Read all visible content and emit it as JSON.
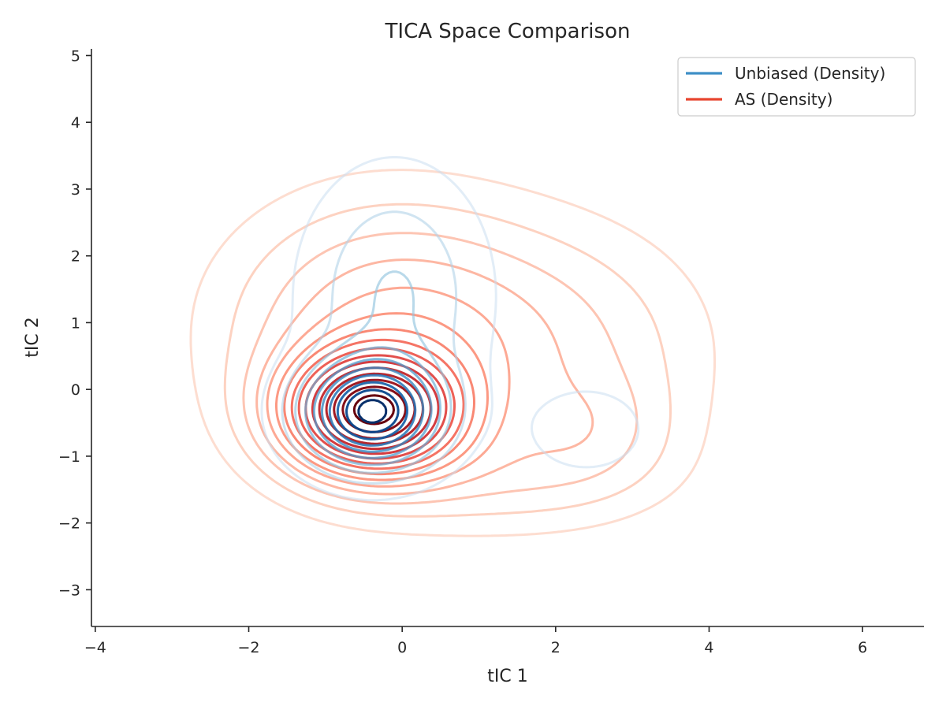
{
  "chart_data": {
    "type": "contour",
    "title": "TICA Space Comparison",
    "xlabel": "tIC 1",
    "ylabel": "tIC 2",
    "xlim": [
      -4.05,
      6.8
    ],
    "ylim": [
      -3.55,
      5.1
    ],
    "x_ticks": [
      -4,
      -2,
      0,
      2,
      4,
      6
    ],
    "y_ticks": [
      -3,
      -2,
      -1,
      0,
      1,
      2,
      3,
      4,
      5
    ],
    "x_tick_labels": [
      "−4",
      "−2",
      "0",
      "2",
      "4",
      "6"
    ],
    "y_tick_labels": [
      "−3",
      "−2",
      "−1",
      "0",
      "1",
      "2",
      "3",
      "4",
      "5"
    ],
    "grid": false,
    "legend_position": "top-right",
    "series": [
      {
        "name": "Unbiased (Density)",
        "color": "#3d8fc6",
        "colormap": "Blues",
        "levels": 10,
        "components": [
          {
            "cx": -0.4,
            "cy": -0.35,
            "sx": 0.55,
            "sy": 0.5,
            "weight": 1.0
          },
          {
            "cx": -0.1,
            "cy": 1.4,
            "sx": 0.7,
            "sy": 1.1,
            "weight": 0.22
          },
          {
            "cx": 2.4,
            "cy": -0.6,
            "sx": 0.6,
            "sy": 0.5,
            "weight": 0.07
          }
        ]
      },
      {
        "name": "AS (Density)",
        "color": "#e8452f",
        "colormap": "Reds",
        "levels": 16,
        "components": [
          {
            "cx": -0.4,
            "cy": -0.35,
            "sx": 0.75,
            "sy": 0.6,
            "weight": 1.0
          },
          {
            "cx": -0.2,
            "cy": 0.9,
            "sx": 1.3,
            "sy": 1.2,
            "weight": 0.28
          },
          {
            "cx": 2.0,
            "cy": 0.6,
            "sx": 1.3,
            "sy": 1.2,
            "weight": 0.14
          },
          {
            "cx": 2.5,
            "cy": -0.6,
            "sx": 0.7,
            "sy": 0.6,
            "weight": 0.09
          },
          {
            "cx": 1.2,
            "cy": -1.3,
            "sx": 1.3,
            "sy": 0.55,
            "weight": 0.1
          }
        ]
      }
    ]
  }
}
